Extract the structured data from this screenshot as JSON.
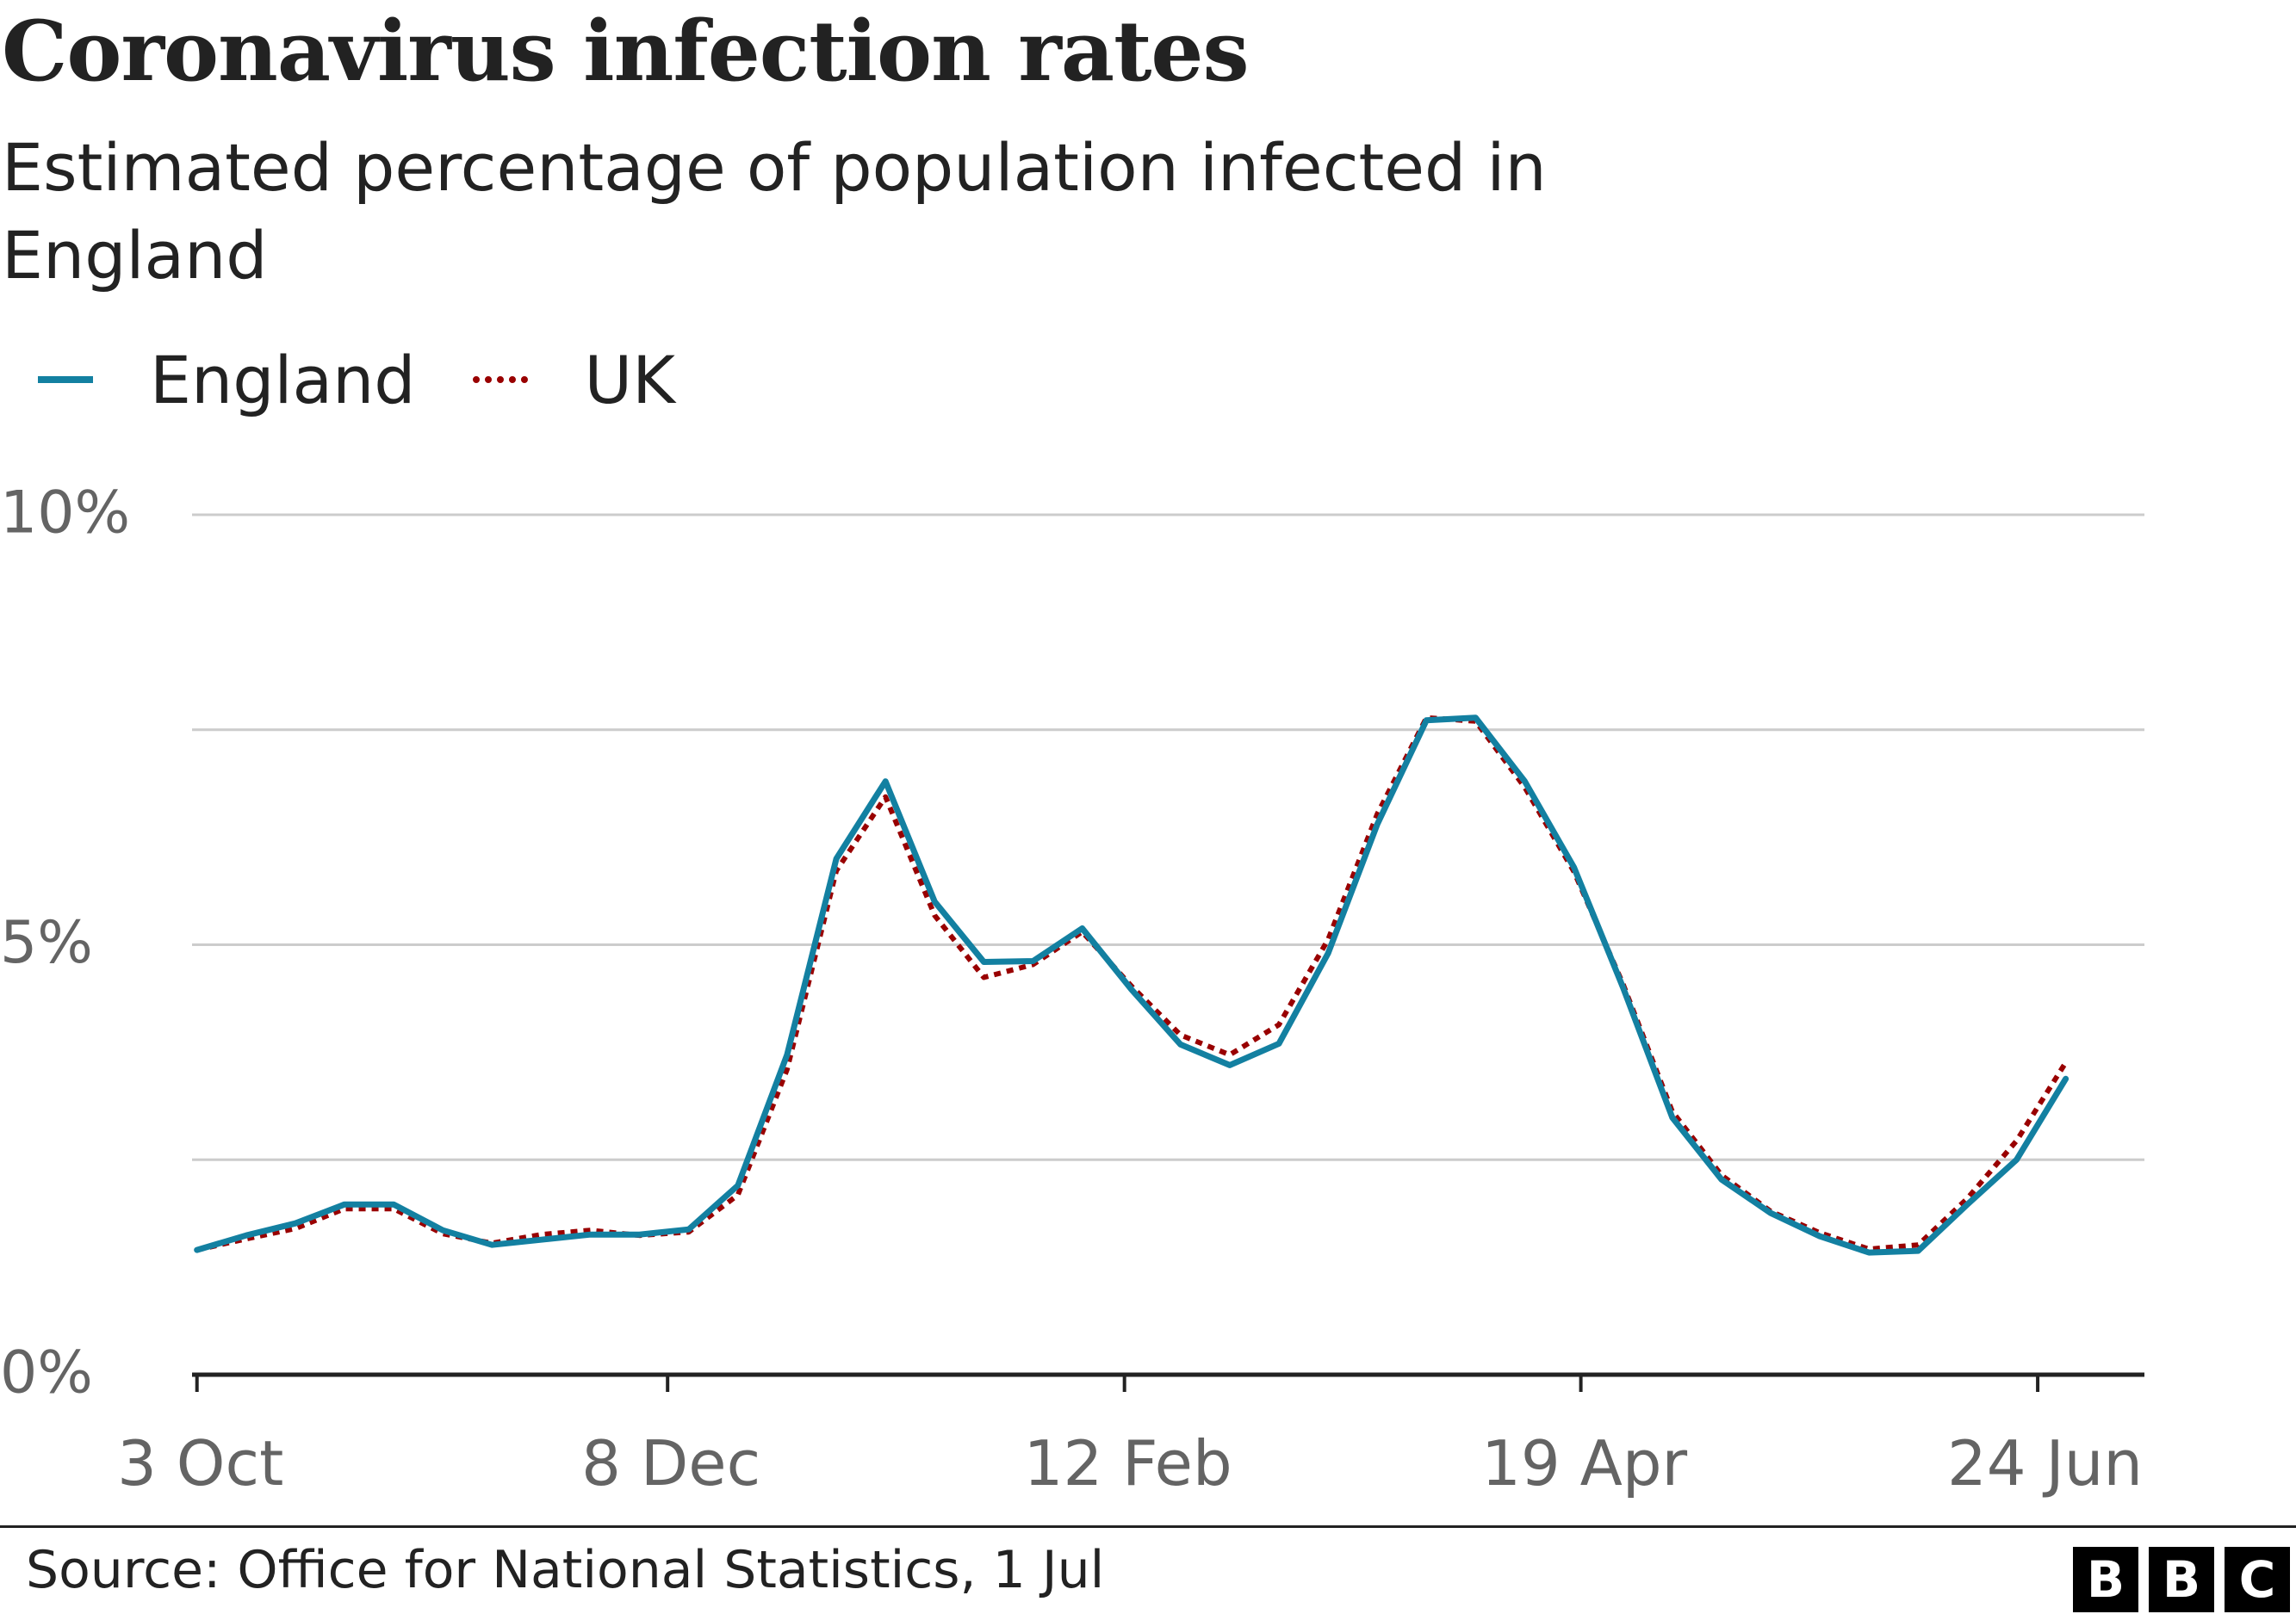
{
  "chart_data": {
    "type": "line",
    "title": "Coronavirus infection rates",
    "subtitle": "Estimated percentage of population infected in England",
    "x_tick_labels": [
      "3 Oct",
      "8 Dec",
      "12 Feb",
      "19 Apr",
      "24 Jun"
    ],
    "x_tick_weeks": [
      0,
      9.57,
      18.86,
      28.14,
      37.43
    ],
    "y_tick_labels": [
      "10%",
      "5%",
      "0%"
    ],
    "y_ticks": [
      10,
      5,
      0
    ],
    "y_gridlines": [
      2.5,
      5,
      7.5,
      10
    ],
    "ylim": [
      0,
      10
    ],
    "xlim": [
      -0.1,
      39.6
    ],
    "series": [
      {
        "name": "England",
        "color": "#1380A1",
        "style": "solid",
        "x": [
          0,
          1,
          2,
          3,
          4,
          5,
          6,
          7,
          8,
          9,
          10,
          11,
          12,
          13,
          14,
          15,
          16,
          17,
          18,
          19,
          20,
          21,
          22,
          23,
          24,
          25,
          26,
          27,
          28,
          29,
          30,
          31,
          32,
          33,
          34,
          35,
          36,
          37,
          38
        ],
        "values": [
          1.45,
          1.62,
          1.76,
          1.98,
          1.98,
          1.68,
          1.51,
          1.57,
          1.63,
          1.63,
          1.69,
          2.2,
          3.72,
          6.0,
          6.9,
          5.5,
          4.8,
          4.81,
          5.19,
          4.48,
          3.84,
          3.6,
          3.85,
          4.9,
          6.4,
          7.61,
          7.64,
          6.9,
          5.9,
          4.5,
          2.99,
          2.27,
          1.88,
          1.61,
          1.42,
          1.44,
          1.98,
          2.5,
          3.44
        ]
      },
      {
        "name": "UK",
        "color": "#990000",
        "style": "dotted",
        "x": [
          0,
          1,
          2,
          3,
          4,
          5,
          6,
          7,
          8,
          9,
          10,
          11,
          12,
          13,
          14,
          15,
          16,
          17,
          18,
          19,
          20,
          21,
          22,
          23,
          24,
          25,
          26,
          27,
          28,
          29,
          30,
          31,
          32,
          33,
          34,
          35,
          36,
          37,
          38
        ],
        "values": [
          1.45,
          1.58,
          1.7,
          1.93,
          1.93,
          1.64,
          1.53,
          1.63,
          1.68,
          1.62,
          1.66,
          2.09,
          3.55,
          5.86,
          6.72,
          5.34,
          4.62,
          4.77,
          5.15,
          4.52,
          3.95,
          3.72,
          4.07,
          5.06,
          6.52,
          7.64,
          7.6,
          6.83,
          5.85,
          4.54,
          3.06,
          2.32,
          1.9,
          1.65,
          1.46,
          1.51,
          2.05,
          2.72,
          3.63
        ]
      }
    ]
  },
  "source_text": "Source: Office for National Statistics, 1 Jul",
  "logo_letters": [
    "B",
    "B",
    "C"
  ]
}
